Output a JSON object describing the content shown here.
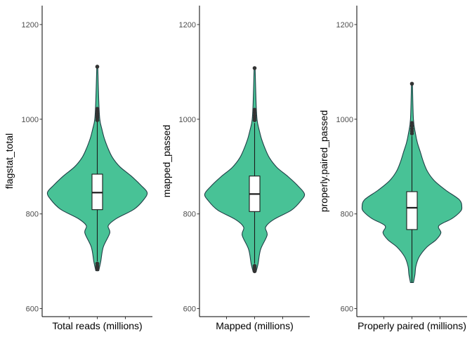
{
  "chart_data": [
    {
      "type": "violin",
      "ylabel": "flagstat_total",
      "xlabel": "Total reads (millions)",
      "yticks": [
        600,
        800,
        1000,
        1200
      ],
      "ylim": [
        583,
        1240
      ],
      "box": {
        "q1": 809,
        "median": 845,
        "q3": 884,
        "whisker_low": 700,
        "whisker_high": 995
      },
      "outliers": [
        1111,
        1022,
        1017,
        1012,
        1007,
        1003,
        998,
        695,
        690,
        686,
        683
      ],
      "density": [
        [
          680,
          0.03
        ],
        [
          700,
          0.07
        ],
        [
          730,
          0.12
        ],
        [
          760,
          0.25
        ],
        [
          775,
          0.22
        ],
        [
          790,
          0.38
        ],
        [
          810,
          0.74
        ],
        [
          830,
          0.93
        ],
        [
          845,
          1.0
        ],
        [
          860,
          0.88
        ],
        [
          880,
          0.68
        ],
        [
          900,
          0.45
        ],
        [
          920,
          0.3
        ],
        [
          940,
          0.21
        ],
        [
          960,
          0.14
        ],
        [
          980,
          0.09
        ],
        [
          1000,
          0.05
        ],
        [
          1040,
          0.03
        ],
        [
          1111,
          0.01
        ]
      ],
      "fill_color": "#48C296",
      "line_color": "#1F3F46"
    },
    {
      "type": "violin",
      "ylabel": "mapped_passed",
      "xlabel": "Mapped (millions)",
      "yticks": [
        600,
        800,
        1000,
        1200
      ],
      "ylim": [
        583,
        1240
      ],
      "box": {
        "q1": 805,
        "median": 842,
        "q3": 880,
        "whisker_low": 695,
        "whisker_high": 992
      },
      "outliers": [
        1108,
        1020,
        1014,
        1008,
        1003,
        998,
        690,
        686,
        682,
        679
      ],
      "density": [
        [
          678,
          0.03
        ],
        [
          695,
          0.07
        ],
        [
          725,
          0.12
        ],
        [
          755,
          0.25
        ],
        [
          772,
          0.22
        ],
        [
          788,
          0.38
        ],
        [
          808,
          0.74
        ],
        [
          828,
          0.93
        ],
        [
          842,
          1.0
        ],
        [
          858,
          0.88
        ],
        [
          878,
          0.68
        ],
        [
          898,
          0.45
        ],
        [
          918,
          0.3
        ],
        [
          938,
          0.21
        ],
        [
          958,
          0.14
        ],
        [
          978,
          0.09
        ],
        [
          998,
          0.05
        ],
        [
          1035,
          0.03
        ],
        [
          1108,
          0.01
        ]
      ],
      "fill_color": "#48C296",
      "line_color": "#1F3F46"
    },
    {
      "type": "violin",
      "ylabel": "properly.paired_passed",
      "xlabel": "Properly paired (millions)",
      "yticks": [
        600,
        800,
        1000,
        1200
      ],
      "ylim": [
        583,
        1240
      ],
      "box": {
        "q1": 767,
        "median": 813,
        "q3": 847,
        "whisker_low": 655,
        "whisker_high": 965
      },
      "outliers": [
        1075,
        992,
        986,
        980,
        975,
        970
      ],
      "density": [
        [
          655,
          0.03
        ],
        [
          672,
          0.06
        ],
        [
          690,
          0.08
        ],
        [
          710,
          0.15
        ],
        [
          730,
          0.3
        ],
        [
          745,
          0.48
        ],
        [
          760,
          0.58
        ],
        [
          775,
          0.54
        ],
        [
          790,
          0.8
        ],
        [
          805,
          0.97
        ],
        [
          815,
          1.0
        ],
        [
          830,
          0.95
        ],
        [
          850,
          0.68
        ],
        [
          870,
          0.45
        ],
        [
          890,
          0.31
        ],
        [
          910,
          0.23
        ],
        [
          930,
          0.17
        ],
        [
          950,
          0.11
        ],
        [
          970,
          0.07
        ],
        [
          1000,
          0.03
        ],
        [
          1075,
          0.01
        ]
      ],
      "fill_color": "#48C296",
      "line_color": "#1F3F46"
    }
  ]
}
